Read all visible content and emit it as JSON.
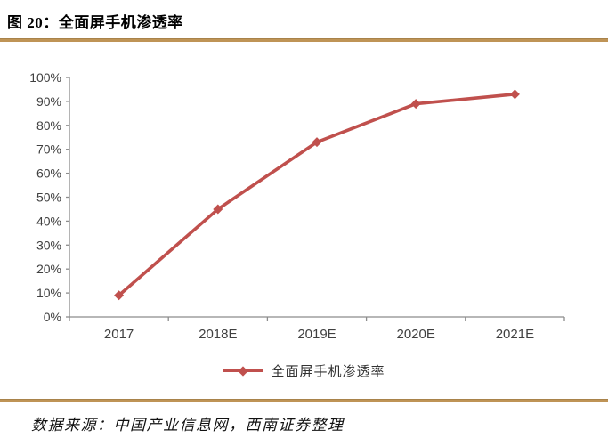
{
  "figure": {
    "title": "图 20：全面屏手机渗透率",
    "source": "数据来源：中国产业信息网，西南证券整理"
  },
  "colors": {
    "accent": "#c0504d",
    "rule_gold": "#bf9456",
    "axis_line": "#8c8c8c",
    "tick_label": "#404040"
  },
  "chart_data": {
    "type": "line",
    "categories": [
      "2017",
      "2018E",
      "2019E",
      "2020E",
      "2021E"
    ],
    "series": [
      {
        "name": "全面屏手机渗透率",
        "values": [
          9,
          45,
          73,
          89,
          93
        ]
      }
    ],
    "title": "",
    "xlabel": "",
    "ylabel": "",
    "ylim": [
      0,
      100
    ],
    "ytick_step": 10,
    "ytick_format": "percent",
    "grid": false,
    "legend_position": "bottom",
    "marker": "diamond"
  }
}
